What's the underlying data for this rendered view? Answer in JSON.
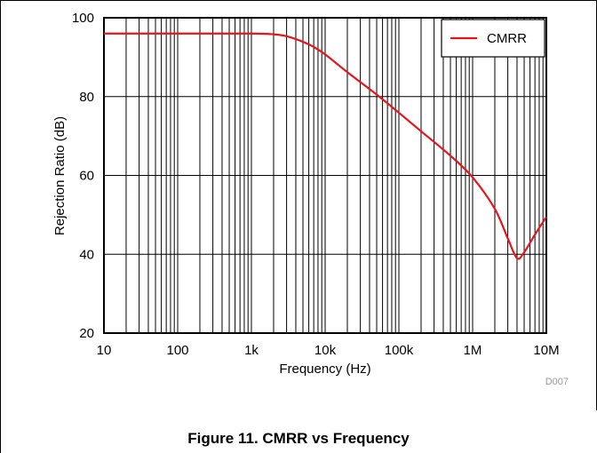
{
  "figure": {
    "caption": "Figure 11. CMRR vs Frequency",
    "code": "D007"
  },
  "chart_data": {
    "type": "line",
    "xlabel": "Frequency (Hz)",
    "ylabel": "Rejection Ratio (dB)",
    "x_scale": "log",
    "xlim": [
      10,
      10000000
    ],
    "ylim": [
      20,
      100
    ],
    "x_ticks": [
      10,
      100,
      1000,
      10000,
      100000,
      1000000,
      10000000
    ],
    "x_tick_labels": [
      "10",
      "100",
      "1k",
      "10k",
      "100k",
      "1M",
      "10M"
    ],
    "y_ticks": [
      20,
      40,
      60,
      80,
      100
    ],
    "y_tick_labels": [
      "20",
      "40",
      "60",
      "80",
      "100"
    ],
    "grid": true,
    "legend_position": "top-right",
    "series": [
      {
        "name": "CMRR",
        "color": "#e8141c",
        "x": [
          10,
          100,
          1000,
          2000,
          3000,
          5000,
          7000,
          10000,
          20000,
          50000,
          100000,
          200000,
          500000,
          1000000,
          2000000,
          3000000,
          4000000,
          5000000,
          7000000,
          10000000
        ],
        "y": [
          96,
          96,
          96,
          95.8,
          95.3,
          93.9,
          92.6,
          90.7,
          86.2,
          80.5,
          75.9,
          71.2,
          65.0,
          59.5,
          51.5,
          44.0,
          39.0,
          40.5,
          45.0,
          49.5
        ]
      }
    ]
  }
}
